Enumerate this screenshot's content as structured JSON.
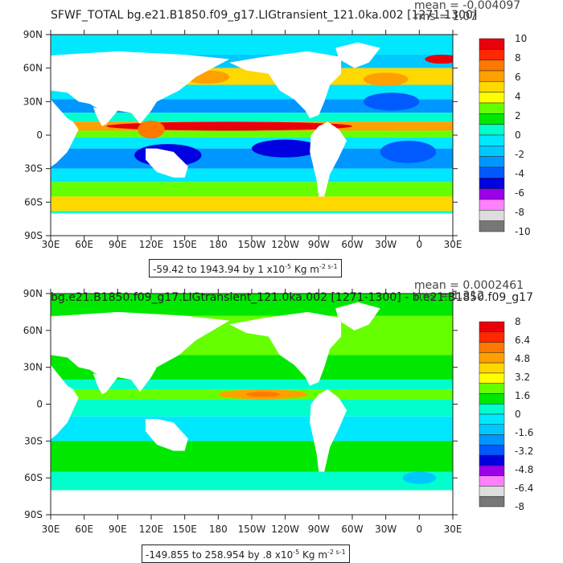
{
  "chart_data": [
    {
      "type": "heatmap",
      "title": "SFWF_TOTAL bg.e21.B1850.f09_g17.LIGtransient_121.0ka.002 [1271-1300]",
      "stats": {
        "mean": "mean = -0.004097",
        "rms": "rms = 1.07"
      },
      "x_ticks": [
        "30E",
        "60E",
        "90E",
        "120E",
        "150E",
        "180",
        "150W",
        "120W",
        "90W",
        "60W",
        "30W",
        "0",
        "30E"
      ],
      "y_ticks": [
        "90N",
        "60N",
        "30N",
        "0",
        "30S",
        "60S",
        "90S"
      ],
      "colorbar_labels": [
        "10",
        "8",
        "6",
        "4",
        "2",
        "0",
        "-2",
        "-4",
        "-6",
        "-8",
        "-10"
      ],
      "colorbar_colors": [
        "#e8000b",
        "#ff2800",
        "#ff7800",
        "#ffa000",
        "#ffd800",
        "#ffff00",
        "#66ff00",
        "#00e800",
        "#00ffcc",
        "#00e8ff",
        "#00c8ff",
        "#0096ff",
        "#005aff",
        "#0000e0",
        "#9b00e8",
        "#ff80ff",
        "#dddddd",
        "#777777"
      ],
      "range_text": "-59.42 to 1943.94 by 1 x10",
      "range_exp": "-5",
      "range_units": " Kg m",
      "range_units_exp": "-2 s-1"
    },
    {
      "type": "heatmap",
      "title": "bg.e21.B1850.f09_g17.LIGtransient_121.0ka.002 [1271-1300] - b.e21.B1850.f09_g17",
      "stats": {
        "mean": "mean = 0.0002461",
        "rms": "rms = 1.312"
      },
      "x_ticks": [
        "30E",
        "60E",
        "90E",
        "120E",
        "150E",
        "180",
        "150W",
        "120W",
        "90W",
        "60W",
        "30W",
        "0",
        "30E"
      ],
      "y_ticks": [
        "90N",
        "60N",
        "30N",
        "0",
        "30S",
        "60S",
        "90S"
      ],
      "colorbar_labels": [
        "8",
        "6.4",
        "4.8",
        "3.2",
        "1.6",
        "0",
        "-1.6",
        "-3.2",
        "-4.8",
        "-6.4",
        "-8"
      ],
      "colorbar_colors": [
        "#e8000b",
        "#ff2800",
        "#ff7800",
        "#ffa000",
        "#ffd800",
        "#ffff00",
        "#66ff00",
        "#00e800",
        "#00ffcc",
        "#00e8ff",
        "#00c8ff",
        "#0096ff",
        "#005aff",
        "#0000e0",
        "#9b00e8",
        "#ff80ff",
        "#dddddd",
        "#777777"
      ],
      "range_text": "-149.855 to 258.954 by .8 x10",
      "range_exp": "-5",
      "range_units": " Kg m",
      "range_units_exp": "-2 s-1"
    }
  ]
}
